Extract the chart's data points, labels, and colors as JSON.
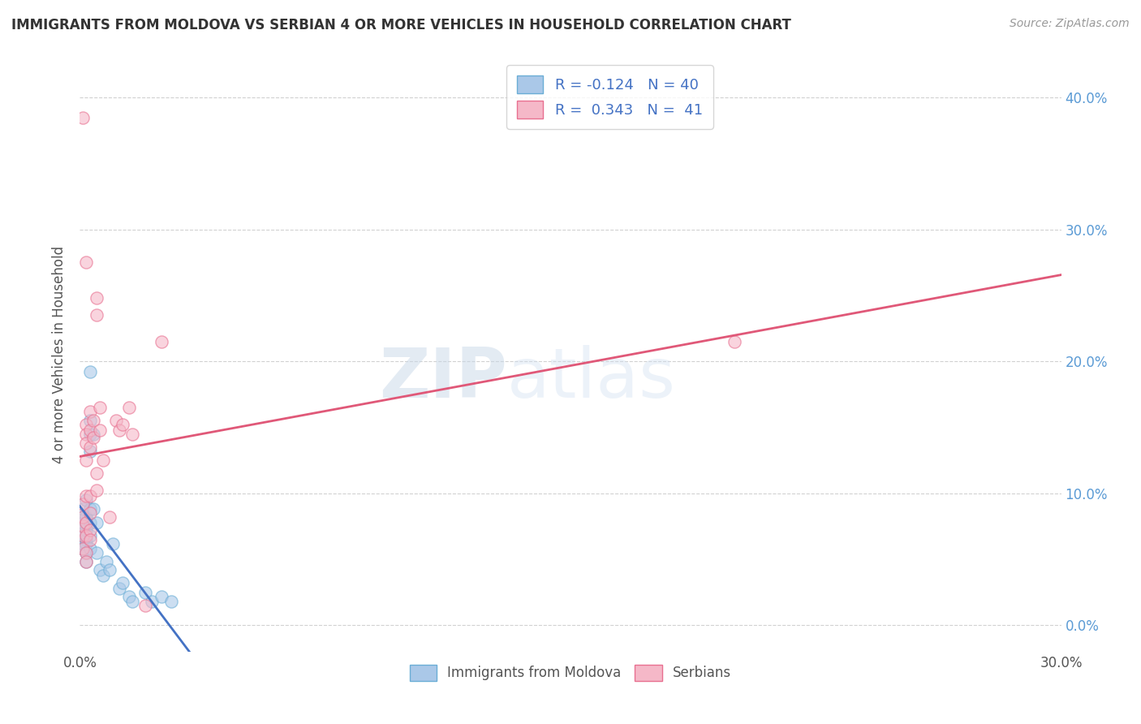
{
  "title": "IMMIGRANTS FROM MOLDOVA VS SERBIAN 4 OR MORE VEHICLES IN HOUSEHOLD CORRELATION CHART",
  "source": "Source: ZipAtlas.com",
  "ylabel": "4 or more Vehicles in Household",
  "xlim": [
    0.0,
    0.3
  ],
  "ylim": [
    -0.02,
    0.43
  ],
  "xticks": [
    0.0,
    0.05,
    0.1,
    0.15,
    0.2,
    0.25,
    0.3
  ],
  "yticks": [
    0.0,
    0.1,
    0.2,
    0.3,
    0.4
  ],
  "xtick_labels": [
    "0.0%",
    "",
    "",
    "",
    "",
    "",
    "30.0%"
  ],
  "ytick_labels_left": [
    "",
    "",
    "",
    "",
    ""
  ],
  "ytick_labels_right": [
    "0.0%",
    "10.0%",
    "20.0%",
    "30.0%",
    "40.0%"
  ],
  "legend_bottom": [
    "Immigrants from Moldova",
    "Serbians"
  ],
  "R_moldova": -0.124,
  "N_moldova": 40,
  "R_serbian": 0.343,
  "N_serbian": 41,
  "moldova_color": "#aac8e8",
  "serbian_color": "#f5b8c8",
  "moldova_edge_color": "#6baed6",
  "serbian_edge_color": "#e87090",
  "moldova_line_color": "#4472C4",
  "serbian_line_color": "#e05878",
  "moldova_scatter": [
    [
      0.001,
      0.068
    ],
    [
      0.001,
      0.072
    ],
    [
      0.001,
      0.078
    ],
    [
      0.001,
      0.082
    ],
    [
      0.001,
      0.088
    ],
    [
      0.001,
      0.058
    ],
    [
      0.001,
      0.062
    ],
    [
      0.002,
      0.095
    ],
    [
      0.002,
      0.065
    ],
    [
      0.002,
      0.072
    ],
    [
      0.002,
      0.078
    ],
    [
      0.002,
      0.082
    ],
    [
      0.002,
      0.062
    ],
    [
      0.002,
      0.055
    ],
    [
      0.002,
      0.048
    ],
    [
      0.003,
      0.192
    ],
    [
      0.003,
      0.155
    ],
    [
      0.003,
      0.145
    ],
    [
      0.003,
      0.132
    ],
    [
      0.003,
      0.088
    ],
    [
      0.003,
      0.078
    ],
    [
      0.003,
      0.068
    ],
    [
      0.003,
      0.058
    ],
    [
      0.004,
      0.145
    ],
    [
      0.004,
      0.088
    ],
    [
      0.005,
      0.078
    ],
    [
      0.005,
      0.055
    ],
    [
      0.006,
      0.042
    ],
    [
      0.007,
      0.038
    ],
    [
      0.008,
      0.048
    ],
    [
      0.009,
      0.042
    ],
    [
      0.01,
      0.062
    ],
    [
      0.012,
      0.028
    ],
    [
      0.013,
      0.032
    ],
    [
      0.015,
      0.022
    ],
    [
      0.016,
      0.018
    ],
    [
      0.02,
      0.025
    ],
    [
      0.022,
      0.018
    ],
    [
      0.025,
      0.022
    ],
    [
      0.028,
      0.018
    ]
  ],
  "serbian_scatter": [
    [
      0.001,
      0.385
    ],
    [
      0.002,
      0.275
    ],
    [
      0.001,
      0.058
    ],
    [
      0.001,
      0.068
    ],
    [
      0.001,
      0.075
    ],
    [
      0.001,
      0.082
    ],
    [
      0.001,
      0.092
    ],
    [
      0.002,
      0.152
    ],
    [
      0.002,
      0.145
    ],
    [
      0.002,
      0.138
    ],
    [
      0.002,
      0.125
    ],
    [
      0.002,
      0.098
    ],
    [
      0.002,
      0.078
    ],
    [
      0.002,
      0.068
    ],
    [
      0.002,
      0.055
    ],
    [
      0.002,
      0.048
    ],
    [
      0.003,
      0.162
    ],
    [
      0.003,
      0.148
    ],
    [
      0.003,
      0.135
    ],
    [
      0.003,
      0.098
    ],
    [
      0.003,
      0.085
    ],
    [
      0.003,
      0.072
    ],
    [
      0.003,
      0.065
    ],
    [
      0.004,
      0.155
    ],
    [
      0.004,
      0.142
    ],
    [
      0.005,
      0.248
    ],
    [
      0.005,
      0.235
    ],
    [
      0.005,
      0.115
    ],
    [
      0.005,
      0.102
    ],
    [
      0.006,
      0.165
    ],
    [
      0.006,
      0.148
    ],
    [
      0.007,
      0.125
    ],
    [
      0.009,
      0.082
    ],
    [
      0.011,
      0.155
    ],
    [
      0.012,
      0.148
    ],
    [
      0.013,
      0.152
    ],
    [
      0.015,
      0.165
    ],
    [
      0.016,
      0.145
    ],
    [
      0.02,
      0.015
    ],
    [
      0.025,
      0.215
    ],
    [
      0.2,
      0.215
    ]
  ],
  "watermark_zip": "ZIP",
  "watermark_atlas": "atlas",
  "background_color": "#ffffff",
  "grid_color": "#cccccc"
}
